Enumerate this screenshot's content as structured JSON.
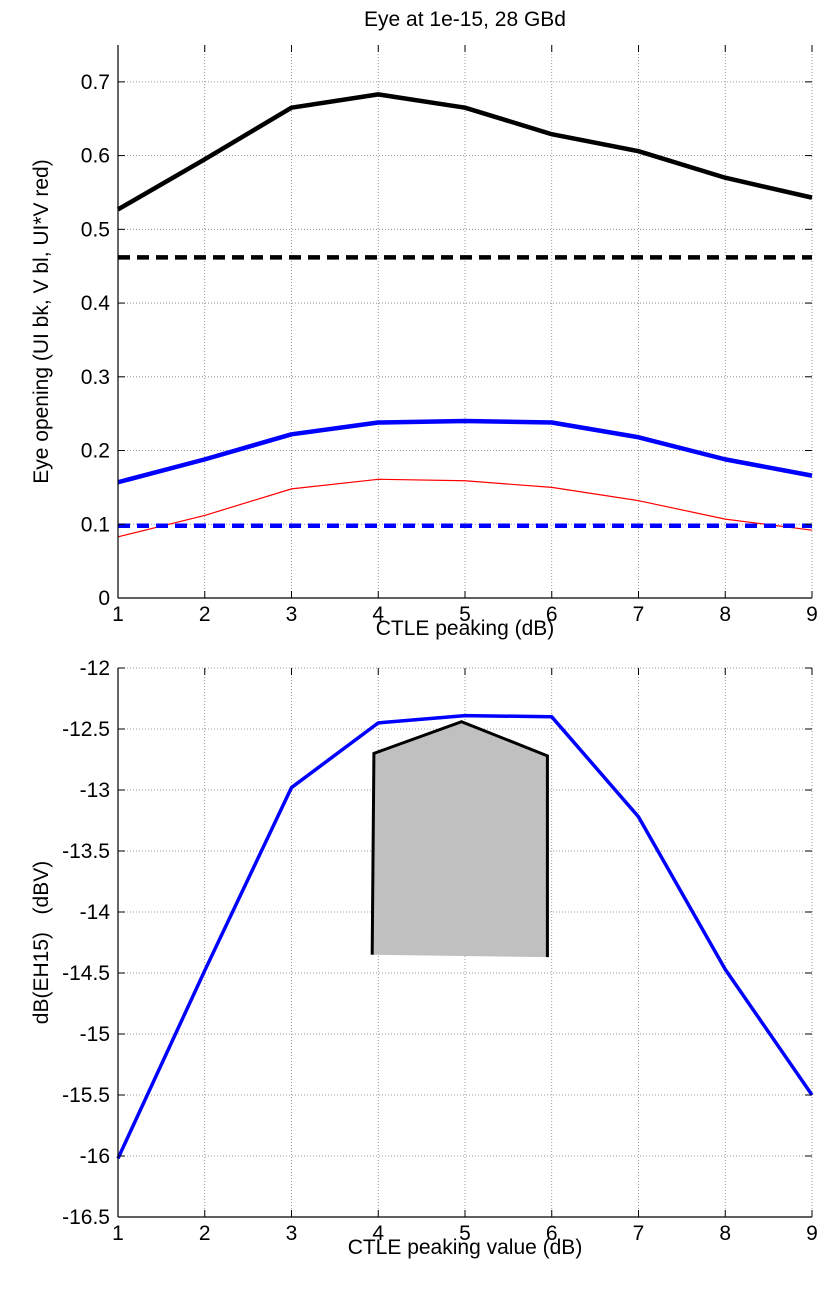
{
  "chart_data": [
    {
      "type": "line",
      "title": "Eye at 1e-15, 28 GBd",
      "xlabel": "CTLE peaking (dB)",
      "ylabel": "Eye opening (UI bk, V bl, UI*V red)",
      "xlim": [
        1,
        9
      ],
      "ylim": [
        0,
        0.75
      ],
      "grid": true,
      "xticks": [
        "1",
        "2",
        "3",
        "4",
        "5",
        "6",
        "7",
        "8",
        "9"
      ],
      "yticks": [
        "0",
        "0.1",
        "0.2",
        "0.3",
        "0.4",
        "0.5",
        "0.6",
        "0.7"
      ],
      "x": [
        1,
        2,
        3,
        4,
        5,
        6,
        7,
        8,
        9
      ],
      "series": [
        {
          "color": "#000000",
          "style": "solid",
          "width": "thick",
          "values": [
            0.527,
            0.595,
            0.665,
            0.683,
            0.665,
            0.629,
            0.606,
            0.57,
            0.543
          ]
        },
        {
          "color": "#0000ff",
          "style": "solid",
          "width": "thick",
          "values": [
            0.157,
            0.188,
            0.222,
            0.238,
            0.24,
            0.238,
            0.218,
            0.188,
            0.166
          ]
        },
        {
          "color": "#ff0000",
          "style": "solid",
          "width": "thin",
          "values": [
            0.083,
            0.112,
            0.148,
            0.161,
            0.159,
            0.15,
            0.132,
            0.107,
            0.092
          ]
        },
        {
          "color": "#000000",
          "style": "dashed",
          "width": "thick",
          "values": [
            0.462,
            0.462,
            0.462,
            0.462,
            0.462,
            0.462,
            0.462,
            0.462,
            0.462
          ]
        },
        {
          "color": "#0000ff",
          "style": "dashed",
          "width": "thick",
          "values": [
            0.098,
            0.098,
            0.098,
            0.098,
            0.098,
            0.098,
            0.098,
            0.098,
            0.098
          ]
        }
      ]
    },
    {
      "type": "line",
      "xlabel": "CTLE peaking value (dB)",
      "ylabel": "dB(EH15)   (dBV)",
      "xlim": [
        1,
        9
      ],
      "ylim": [
        -16.5,
        -12
      ],
      "grid": true,
      "xticks": [
        "1",
        "2",
        "3",
        "4",
        "5",
        "6",
        "7",
        "8",
        "9"
      ],
      "yticks": [
        "-12",
        "-12.5",
        "-13",
        "-13.5",
        "-14",
        "-14.5",
        "-15",
        "-15.5",
        "-16",
        "-16.5"
      ],
      "x": [
        1,
        2,
        3,
        4,
        5,
        6,
        7,
        8,
        9
      ],
      "series": [
        {
          "color": "#0000ff",
          "style": "solid",
          "width": "medium",
          "values": [
            -16.02,
            -14.48,
            -12.98,
            -12.45,
            -12.39,
            -12.4,
            -13.22,
            -14.47,
            -15.5
          ]
        }
      ],
      "annotation": {
        "type": "shaded-region",
        "fill": "#c0c0c0",
        "stroke": "#000000",
        "points": [
          [
            3.93,
            -14.35
          ],
          [
            3.95,
            -12.7
          ],
          [
            4.96,
            -12.44
          ],
          [
            5.95,
            -12.72
          ],
          [
            5.95,
            -14.37
          ]
        ]
      }
    }
  ]
}
